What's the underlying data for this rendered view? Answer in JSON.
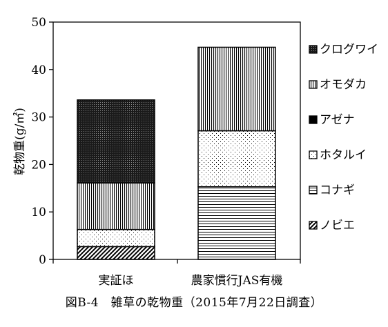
{
  "chart_data": {
    "type": "bar",
    "stacked": true,
    "ylabel": "乾物重(g/㎡)",
    "ylim": [
      0,
      50
    ],
    "yticks": [
      0,
      10,
      20,
      30,
      40,
      50
    ],
    "grid": false,
    "legend_position": "right",
    "categories": [
      "実証ほ",
      "農家慣行JAS有機"
    ],
    "series": [
      {
        "name": "ノビエ",
        "values": [
          2.7,
          0
        ],
        "pattern": "diagonal"
      },
      {
        "name": "コナギ",
        "values": [
          0,
          15.3
        ],
        "pattern": "horizontal"
      },
      {
        "name": "ホタルイ",
        "values": [
          3.6,
          11.8
        ],
        "pattern": "dots"
      },
      {
        "name": "アゼナ",
        "values": [
          0,
          0
        ],
        "pattern": "solid"
      },
      {
        "name": "オモダカ",
        "values": [
          9.8,
          17.6
        ],
        "pattern": "vertical"
      },
      {
        "name": "クログワイ",
        "values": [
          17.5,
          0
        ],
        "pattern": "dense"
      }
    ]
  },
  "caption": "図B-4　雑草の乾物重（2015年7月22日調査）"
}
